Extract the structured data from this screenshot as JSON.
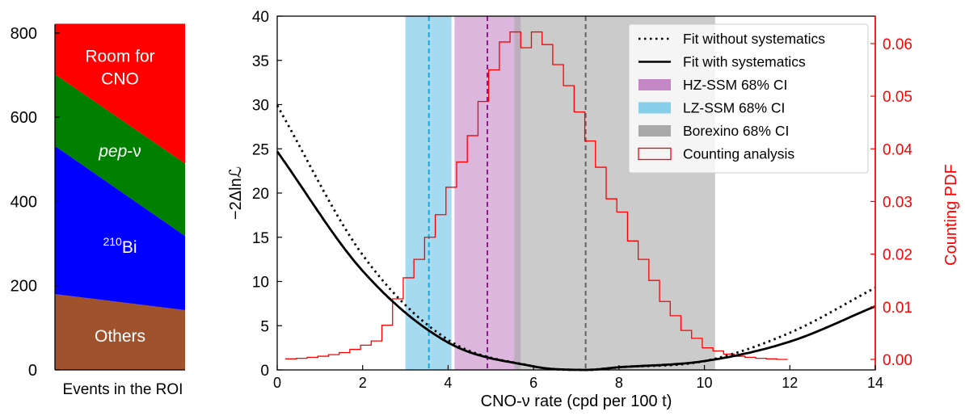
{
  "chart_data": [
    {
      "type": "area",
      "title": "",
      "xlabel": "Events in the ROI",
      "ylabel": "",
      "ylim": [
        0,
        840
      ],
      "yticks": [
        "0",
        "200",
        "400",
        "600",
        "800"
      ],
      "x": [
        0,
        1
      ],
      "series": [
        {
          "name": "Others",
          "label": "Others",
          "color": "#a0522d",
          "lower": [
            0,
            0
          ],
          "upper": [
            180,
            142
          ]
        },
        {
          "name": "210Bi",
          "label_sup": "210",
          "label_rest": "Bi",
          "color": "#0000ff",
          "lower": [
            180,
            142
          ],
          "upper": [
            532,
            318
          ]
        },
        {
          "name": "pep-nu",
          "label_ital": "pep",
          "label_rest": "-ν",
          "color": "#008000",
          "lower": [
            532,
            318
          ],
          "upper": [
            702,
            490
          ]
        },
        {
          "name": "Room for CNO",
          "label_line1": "Room for",
          "label_line2": "CNO",
          "color": "#ff0000",
          "lower": [
            702,
            490
          ],
          "upper": [
            822,
            822
          ]
        }
      ]
    },
    {
      "type": "line",
      "title": "",
      "xlabel": "CNO-ν rate (cpd per 100 t)",
      "ylabel": "−2Δlnℒ",
      "y2label": "Counting PDF",
      "xlim": [
        0,
        14
      ],
      "ylim": [
        0,
        40
      ],
      "y2lim": [
        -0.002,
        0.0652
      ],
      "xticks": [
        "0",
        "2",
        "4",
        "6",
        "8",
        "10",
        "12",
        "14"
      ],
      "yticks": [
        "0",
        "5",
        "10",
        "15",
        "20",
        "25",
        "30",
        "35",
        "40"
      ],
      "y2ticks": [
        "0.00",
        "0.01",
        "0.02",
        "0.03",
        "0.04",
        "0.05",
        "0.06"
      ],
      "bands": [
        {
          "name": "LZ-SSM 68% CI",
          "x0": 3.0,
          "x1": 4.08,
          "color": "#87ceeb",
          "opacity": 0.75
        },
        {
          "name": "HZ-SSM 68% CI",
          "x0": 4.15,
          "x1": 5.7,
          "color": "#c586c5",
          "opacity": 0.6
        },
        {
          "name": "Borexino 68% CI",
          "x0": 5.55,
          "x1": 10.25,
          "color": "#a9a9a9",
          "opacity": 0.6
        }
      ],
      "vlines": [
        {
          "x": 3.55,
          "color": "#1aa7d9"
        },
        {
          "x": 4.92,
          "color": "#8b1a8b"
        },
        {
          "x": 7.22,
          "color": "#606060"
        }
      ],
      "fit_with_systematics": {
        "min_x": 7.2,
        "x": [
          0,
          2,
          4,
          6,
          7.2,
          8,
          10,
          12,
          14
        ],
        "y": [
          24.7,
          11.2,
          3.1,
          0.4,
          0.0,
          0.3,
          1.0,
          3.2,
          7.2
        ]
      },
      "fit_without_systematics": {
        "min_x": 7.2,
        "x": [
          0,
          2,
          4,
          6,
          7.2,
          8,
          10,
          12,
          14
        ],
        "y": [
          29.9,
          13.0,
          3.4,
          0.4,
          0.0,
          0.3,
          1.0,
          4.2,
          9.3
        ]
      },
      "counting_histogram": {
        "x_edges": [
          0.2,
          0.45,
          0.7,
          0.95,
          1.2,
          1.45,
          1.7,
          1.95,
          2.2,
          2.45,
          2.7,
          2.95,
          3.2,
          3.45,
          3.7,
          3.95,
          4.2,
          4.45,
          4.7,
          4.95,
          5.2,
          5.45,
          5.7,
          5.95,
          6.2,
          6.45,
          6.7,
          6.95,
          7.2,
          7.45,
          7.7,
          7.95,
          8.2,
          8.45,
          8.7,
          8.95,
          9.2,
          9.45,
          9.7,
          9.95,
          10.2,
          10.45,
          10.7,
          10.95,
          11.2,
          11.45,
          11.7,
          11.95
        ],
        "pdf": [
          0.0001,
          0.0002,
          0.0004,
          0.0006,
          0.0009,
          0.0013,
          0.0019,
          0.0027,
          0.0035,
          0.0065,
          0.0115,
          0.0155,
          0.019,
          0.0232,
          0.0275,
          0.0327,
          0.0375,
          0.0425,
          0.049,
          0.055,
          0.0603,
          0.0622,
          0.0592,
          0.0622,
          0.0598,
          0.056,
          0.052,
          0.047,
          0.0415,
          0.0365,
          0.0305,
          0.028,
          0.0225,
          0.019,
          0.015,
          0.011,
          0.0083,
          0.0055,
          0.004,
          0.0022,
          0.0016,
          0.001,
          0.0006,
          0.0004,
          0.0002,
          0.0001,
          0.0
        ]
      },
      "legend": {
        "placement": "top-right",
        "entries": [
          {
            "kind": "dotted",
            "label": "Fit without systematics"
          },
          {
            "kind": "solid",
            "label": "Fit with systematics"
          },
          {
            "kind": "patch",
            "color": "#c586c5",
            "label": "HZ-SSM 68% CI"
          },
          {
            "kind": "patch",
            "color": "#87ceeb",
            "label": "LZ-SSM 68% CI"
          },
          {
            "kind": "patch",
            "color": "#a9a9a9",
            "label": "Borexino 68% CI"
          },
          {
            "kind": "hist",
            "color": "#ff0000",
            "label": "Counting analysis"
          }
        ]
      }
    }
  ]
}
